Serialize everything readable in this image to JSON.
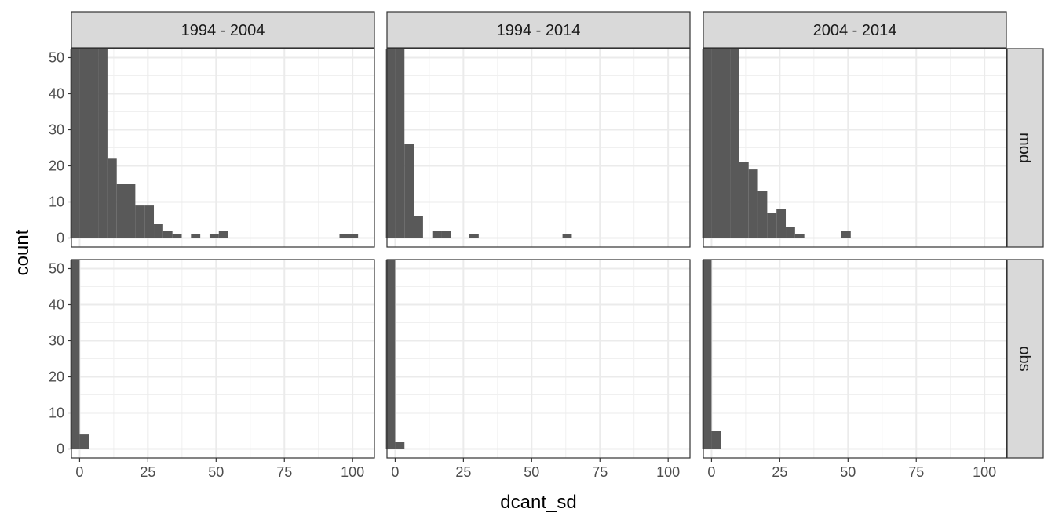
{
  "chart_data": {
    "type": "bar",
    "subtype": "faceted-histogram",
    "xlabel": "dcant_sd",
    "ylabel": "count",
    "xlim": [
      -3,
      108
    ],
    "ylim": [
      -2.5,
      52.5
    ],
    "x_ticks": [
      0,
      25,
      50,
      75,
      100
    ],
    "y_ticks": [
      0,
      10,
      20,
      30,
      40,
      50
    ],
    "bin_width": 3.4,
    "grid": true,
    "bar_color": "#595959",
    "strip_color": "#d9d9d9",
    "column_facets": [
      "1994 - 2004",
      "1994 - 2014",
      "2004 - 2014"
    ],
    "row_facets": [
      "mod",
      "obs"
    ],
    "panels": [
      {
        "col": "1994 - 2004",
        "row": "mod",
        "bins": [
          {
            "x": -1.7,
            "count": 52.5
          },
          {
            "x": 1.7,
            "count": 52.5
          },
          {
            "x": 5.1,
            "count": 52.5
          },
          {
            "x": 8.5,
            "count": 52.5
          },
          {
            "x": 11.9,
            "count": 22
          },
          {
            "x": 15.3,
            "count": 15
          },
          {
            "x": 18.7,
            "count": 15
          },
          {
            "x": 22.1,
            "count": 9
          },
          {
            "x": 25.5,
            "count": 9
          },
          {
            "x": 28.9,
            "count": 4
          },
          {
            "x": 32.3,
            "count": 2
          },
          {
            "x": 35.7,
            "count": 1
          },
          {
            "x": 42.5,
            "count": 1
          },
          {
            "x": 49.3,
            "count": 1
          },
          {
            "x": 52.7,
            "count": 2
          },
          {
            "x": 96.9,
            "count": 1
          },
          {
            "x": 100.3,
            "count": 1
          }
        ]
      },
      {
        "col": "1994 - 2014",
        "row": "mod",
        "bins": [
          {
            "x": -1.7,
            "count": 52.5
          },
          {
            "x": 1.7,
            "count": 52.5
          },
          {
            "x": 5.1,
            "count": 26
          },
          {
            "x": 8.5,
            "count": 6
          },
          {
            "x": 15.3,
            "count": 2
          },
          {
            "x": 18.7,
            "count": 2
          },
          {
            "x": 28.9,
            "count": 1
          },
          {
            "x": 63.0,
            "count": 1
          }
        ]
      },
      {
        "col": "2004 - 2014",
        "row": "mod",
        "bins": [
          {
            "x": -1.7,
            "count": 52.5
          },
          {
            "x": 1.7,
            "count": 52.5
          },
          {
            "x": 5.1,
            "count": 52.5
          },
          {
            "x": 8.5,
            "count": 52.5
          },
          {
            "x": 11.9,
            "count": 21
          },
          {
            "x": 15.3,
            "count": 19
          },
          {
            "x": 18.7,
            "count": 13
          },
          {
            "x": 22.1,
            "count": 7
          },
          {
            "x": 25.5,
            "count": 8
          },
          {
            "x": 28.9,
            "count": 3
          },
          {
            "x": 32.3,
            "count": 1
          },
          {
            "x": 49.3,
            "count": 2
          }
        ]
      },
      {
        "col": "1994 - 2004",
        "row": "obs",
        "bins": [
          {
            "x": -1.7,
            "count": 52.5
          },
          {
            "x": 1.7,
            "count": 4
          }
        ]
      },
      {
        "col": "1994 - 2014",
        "row": "obs",
        "bins": [
          {
            "x": -1.7,
            "count": 52.5
          },
          {
            "x": 1.7,
            "count": 2
          }
        ]
      },
      {
        "col": "2004 - 2014",
        "row": "obs",
        "bins": [
          {
            "x": -1.7,
            "count": 52.5
          },
          {
            "x": 1.7,
            "count": 5
          }
        ]
      }
    ]
  }
}
